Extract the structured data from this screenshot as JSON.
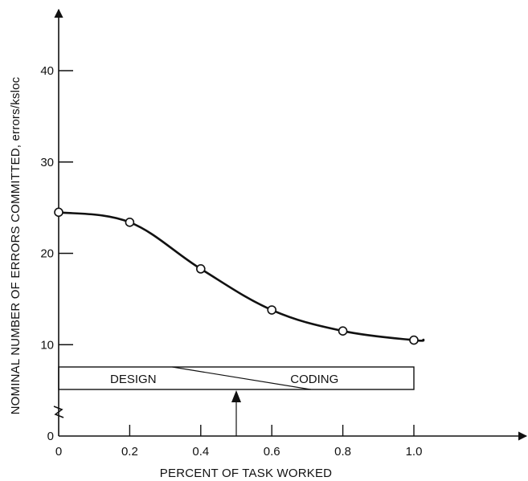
{
  "chart_data": {
    "type": "line",
    "title": "",
    "xlabel": "PERCENT OF TASK WORKED",
    "ylabel": "NOMINAL NUMBER OF ERRORS COMMITTED, errors/ksloc",
    "xlim": [
      0,
      1.0
    ],
    "ylim": [
      0,
      40
    ],
    "x_ticks": [
      "0",
      "0.2",
      "0.4",
      "0.6",
      "0.8",
      "1.0"
    ],
    "y_ticks": [
      "0",
      "10",
      "20",
      "30",
      "40"
    ],
    "y_axis_break": true,
    "grid": false,
    "series": [
      {
        "x": [
          0,
          0.2,
          0.4,
          0.6,
          0.8,
          1.0
        ],
        "y": [
          24.5,
          23.4,
          18.3,
          13.8,
          11.5,
          10.5
        ]
      }
    ],
    "phase_band": {
      "labels": [
        "DESIGN",
        "CODING"
      ],
      "x_start": 0,
      "x_end": 1.0,
      "transition_marker_x": 0.5
    }
  }
}
